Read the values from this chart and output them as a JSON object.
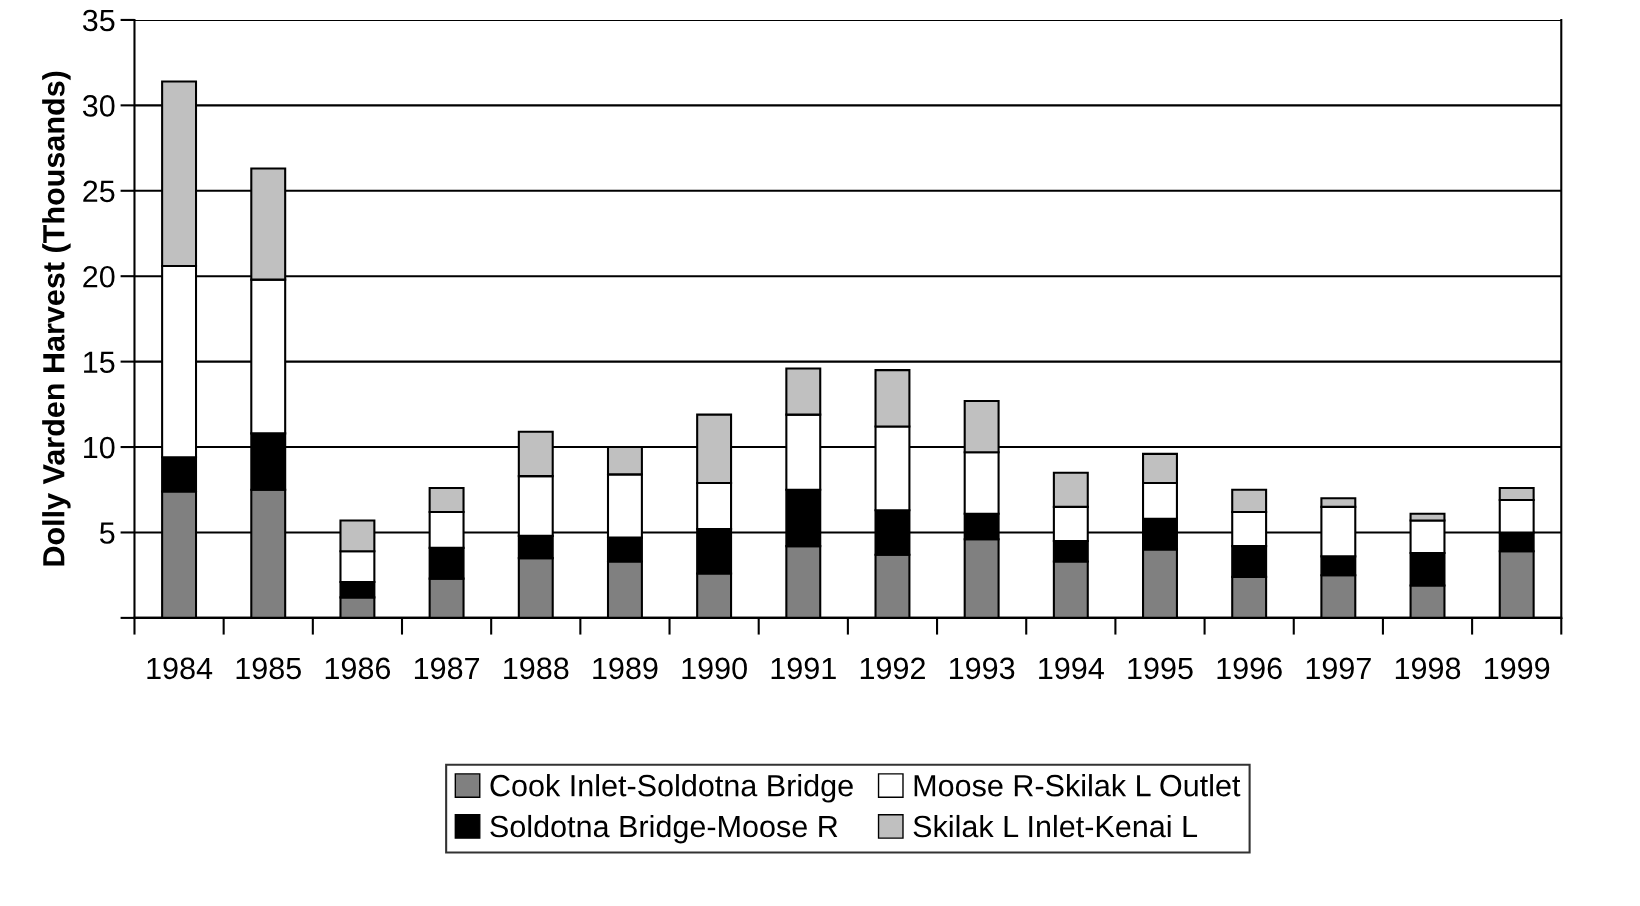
{
  "chart_data": {
    "type": "bar",
    "stacked": true,
    "ylabel": "Dolly Varden Harvest (Thousands)",
    "categories": [
      "1984",
      "1985",
      "1986",
      "1987",
      "1988",
      "1989",
      "1990",
      "1991",
      "1992",
      "1993",
      "1994",
      "1995",
      "1996",
      "1997",
      "1998",
      "1999"
    ],
    "series": [
      {
        "name": "Cook Inlet-Soldotna Bridge",
        "color": "#808080",
        "values": [
          7.4,
          7.5,
          1.2,
          2.3,
          3.5,
          3.3,
          2.6,
          4.2,
          3.7,
          4.6,
          3.3,
          4.0,
          2.4,
          2.5,
          1.9,
          3.9
        ]
      },
      {
        "name": "Soldotna Bridge-Moose R",
        "color": "#000000",
        "values": [
          2.0,
          3.3,
          0.9,
          1.8,
          1.3,
          1.4,
          2.6,
          3.3,
          2.6,
          1.5,
          1.2,
          1.8,
          1.8,
          1.1,
          1.9,
          1.1
        ]
      },
      {
        "name": "Moose R-Skilak L Outlet",
        "color": "#ffffff",
        "values": [
          11.2,
          9.0,
          1.8,
          2.1,
          3.5,
          3.7,
          2.7,
          4.4,
          4.9,
          3.6,
          2.0,
          2.1,
          2.0,
          2.9,
          1.9,
          1.9
        ]
      },
      {
        "name": "Skilak L Inlet-Kenai L",
        "color": "#c0c0c0",
        "values": [
          10.8,
          6.5,
          1.8,
          1.4,
          2.6,
          1.6,
          4.0,
          2.7,
          3.3,
          3.0,
          2.0,
          1.7,
          1.3,
          0.5,
          0.4,
          0.7
        ]
      }
    ],
    "ylim": [
      0,
      35
    ],
    "yticks": [
      {
        "value": 0,
        "label": null
      },
      5,
      10,
      15,
      20,
      25,
      30,
      35
    ],
    "grid": "y",
    "legend": "bottom"
  }
}
